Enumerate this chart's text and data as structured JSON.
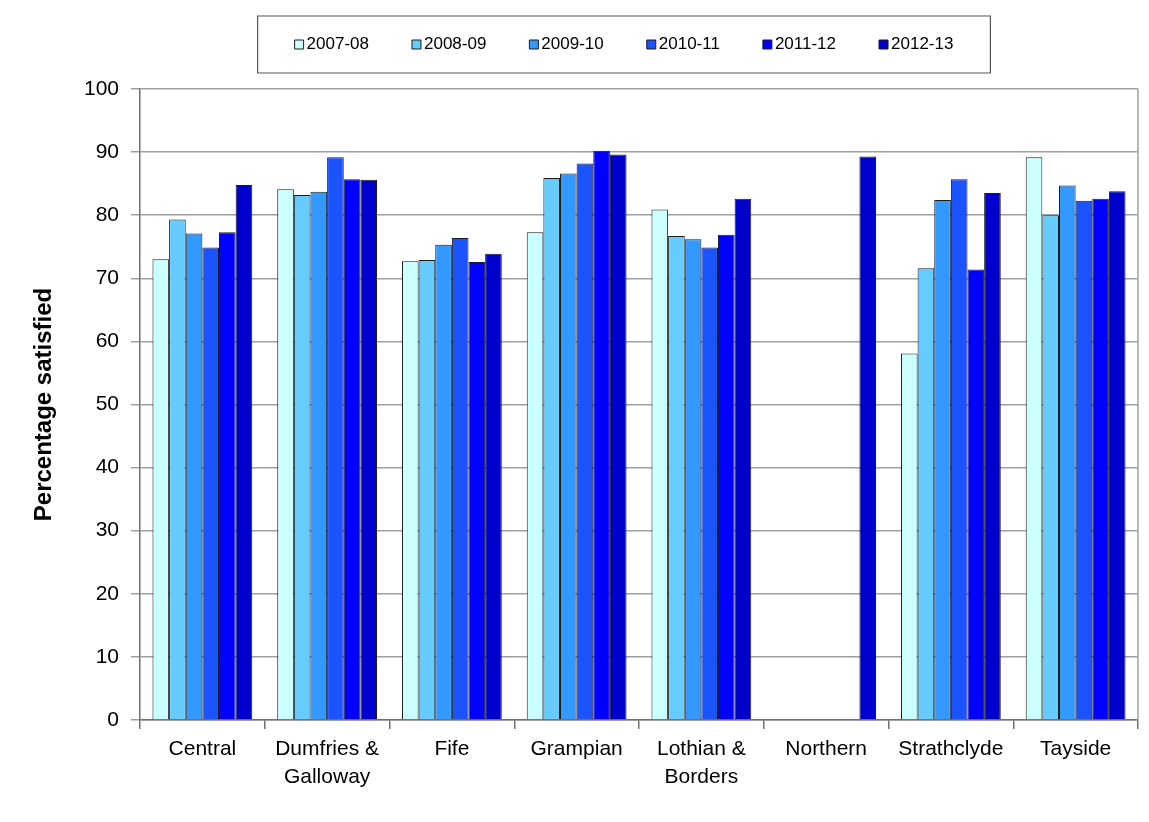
{
  "chart_data": {
    "type": "bar",
    "ylabel": "Percentage satisfied",
    "categories": [
      "Central",
      "Dumfries & Galloway",
      "Fife",
      "Grampian",
      "Lothian & Borders",
      "Northern",
      "Strathclyde",
      "Tayside"
    ],
    "series": [
      {
        "name": "2007-08",
        "color": "#ccffff",
        "values": [
          73.0,
          84.1,
          72.7,
          77.3,
          80.9,
          null,
          58.1,
          89.2
        ]
      },
      {
        "name": "2008-09",
        "color": "#66ccff",
        "values": [
          79.3,
          83.2,
          72.9,
          85.9,
          76.7,
          null,
          71.6,
          80.0
        ]
      },
      {
        "name": "2009-10",
        "color": "#3399ff",
        "values": [
          77.1,
          83.7,
          75.3,
          86.6,
          76.2,
          null,
          82.4,
          84.7
        ]
      },
      {
        "name": "2010-11",
        "color": "#1a53ff",
        "values": [
          74.9,
          89.2,
          76.4,
          88.2,
          74.9,
          null,
          85.7,
          82.3
        ]
      },
      {
        "name": "2011-12",
        "color": "#0000ff",
        "values": [
          77.3,
          85.7,
          72.6,
          90.2,
          76.9,
          null,
          71.4,
          82.6
        ]
      },
      {
        "name": "2012-13",
        "color": "#0000cc",
        "values": [
          84.8,
          85.6,
          73.9,
          89.6,
          82.6,
          89.3,
          83.5,
          83.8
        ]
      }
    ],
    "ylim": [
      0,
      100
    ],
    "yticks": [
      0,
      10,
      20,
      30,
      40,
      50,
      60,
      70,
      80,
      90,
      100
    ],
    "grid": "y",
    "legend": "top"
  }
}
